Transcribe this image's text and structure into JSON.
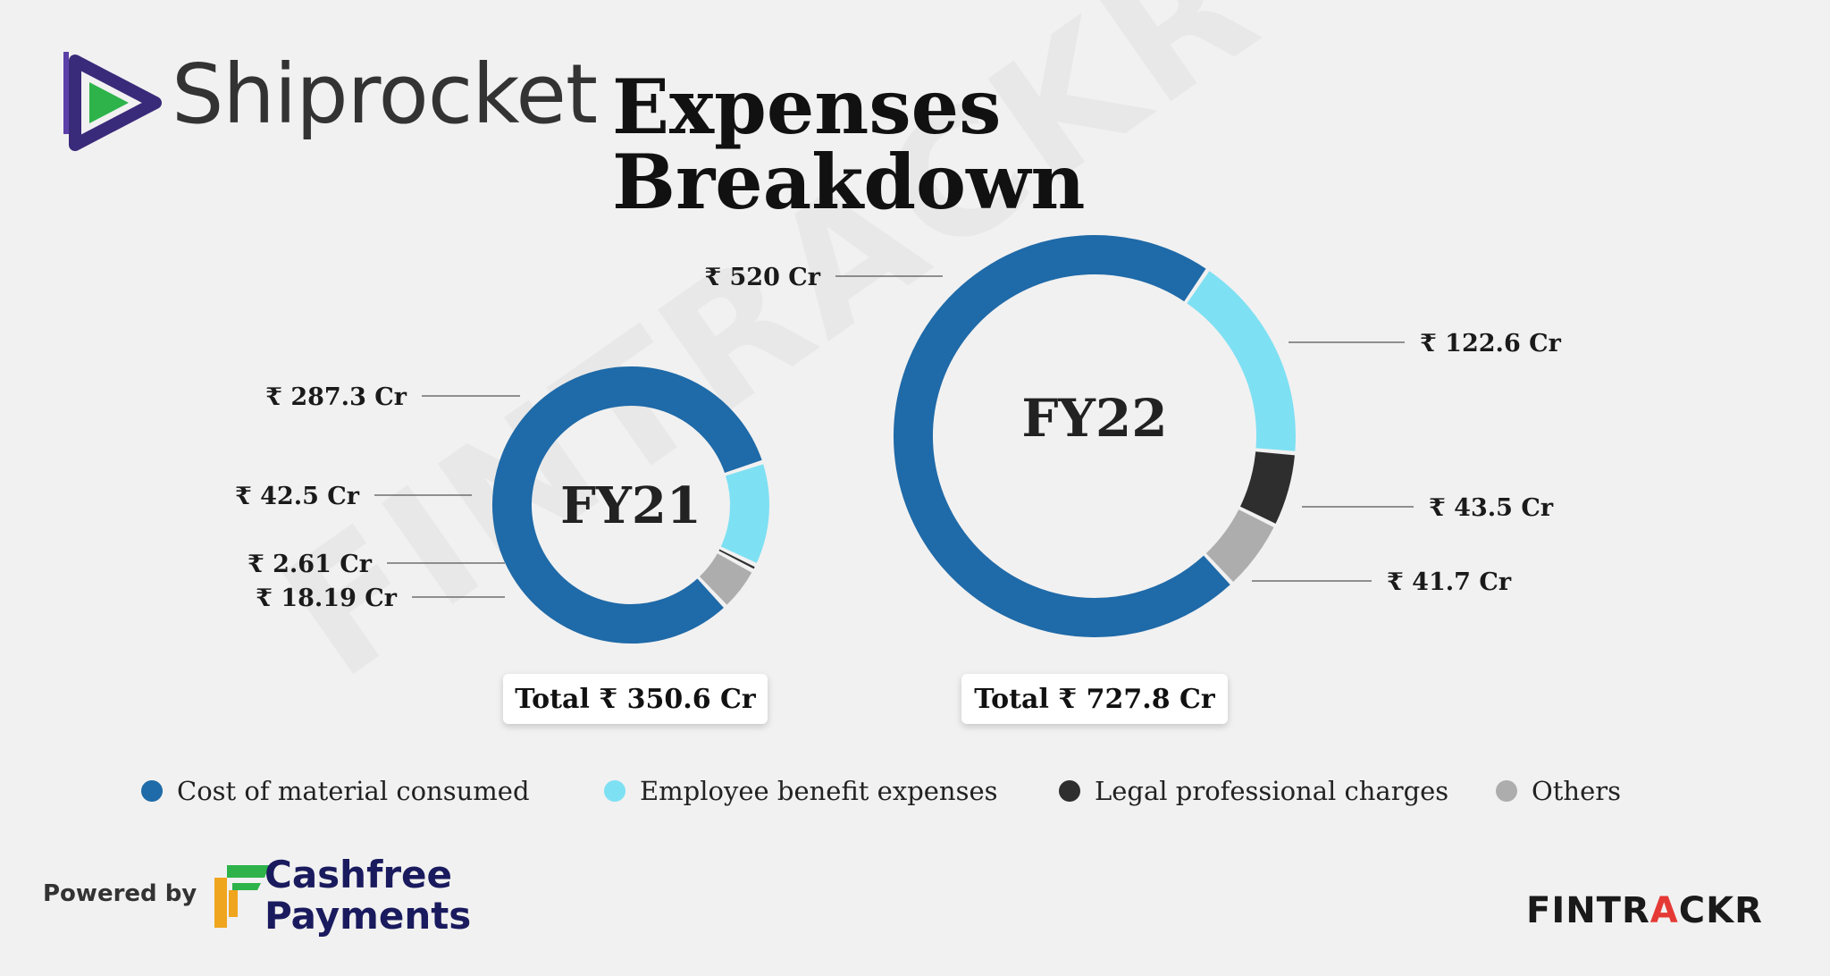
{
  "header": {
    "brand": "Shiprocket",
    "title": "Expenses Breakdown"
  },
  "watermark": "FINTRACKR",
  "colors": {
    "cost_of_material": "#1f6aa8",
    "employee_benefit": "#7ee0f3",
    "legal_professional": "#2e2e2e",
    "others": "#adadad"
  },
  "chart_data": [
    {
      "type": "donut",
      "title": "FY21",
      "total_label": "Total ₹ 350.6 Cr",
      "slices": [
        {
          "category": "Cost of material consumed",
          "value": 287.3,
          "label": "₹ 287.3 Cr"
        },
        {
          "category": "Employee benefit expenses",
          "value": 42.5,
          "label": "₹ 42.5 Cr"
        },
        {
          "category": "Legal professional charges",
          "value": 2.61,
          "label": "₹ 2.61 Cr"
        },
        {
          "category": "Others",
          "value": 18.19,
          "label": "₹ 18.19 Cr"
        }
      ]
    },
    {
      "type": "donut",
      "title": "FY22",
      "total_label": "Total ₹ 727.8 Cr",
      "slices": [
        {
          "category": "Cost of material consumed",
          "value": 520,
          "label": "₹ 520 Cr"
        },
        {
          "category": "Employee benefit expenses",
          "value": 122.6,
          "label": "₹ 122.6 Cr"
        },
        {
          "category": "Legal professional charges",
          "value": 43.5,
          "label": "₹ 43.5 Cr"
        },
        {
          "category": "Others",
          "value": 41.7,
          "label": "₹ 41.7 Cr"
        }
      ]
    }
  ],
  "legend": [
    {
      "label": "Cost of material consumed",
      "color": "#1f6aa8"
    },
    {
      "label": "Employee benefit expenses",
      "color": "#7ee0f3"
    },
    {
      "label": "Legal professional charges",
      "color": "#2e2e2e"
    },
    {
      "label": "Others",
      "color": "#adadad"
    }
  ],
  "footer": {
    "powered_by": "Powered by",
    "cashfree_line1": "Cashfree",
    "cashfree_line2": "Payments",
    "fintrackr_a": "FINTR",
    "fintrackr_b": "A",
    "fintrackr_c": "CKR"
  }
}
